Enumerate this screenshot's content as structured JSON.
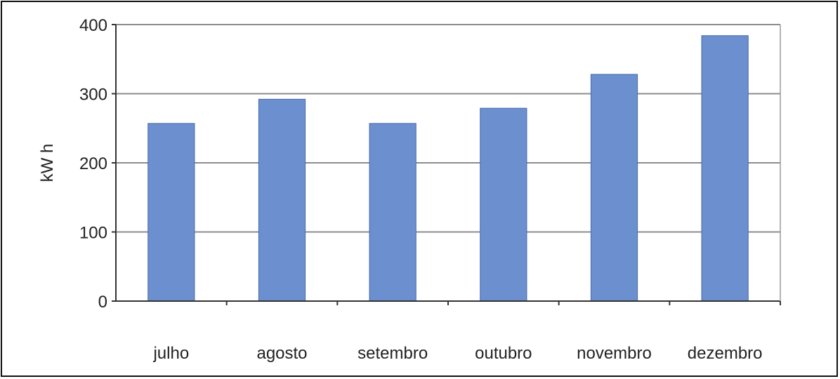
{
  "chart_data": {
    "type": "bar",
    "title": "",
    "xlabel": "",
    "ylabel": "kW h",
    "categories": [
      "julho",
      "agosto",
      "setembro",
      "outubro",
      "novembro",
      "dezembro"
    ],
    "values": [
      257,
      292,
      257,
      279,
      328,
      384
    ],
    "ylim": [
      0,
      400
    ],
    "yticks": [
      0,
      100,
      200,
      300,
      400
    ],
    "grid": true,
    "legend": "none",
    "bar_color": "#6b8fcf",
    "bar_edge_color": "#4a6aa8",
    "grid_color": "#8c8c8c"
  }
}
